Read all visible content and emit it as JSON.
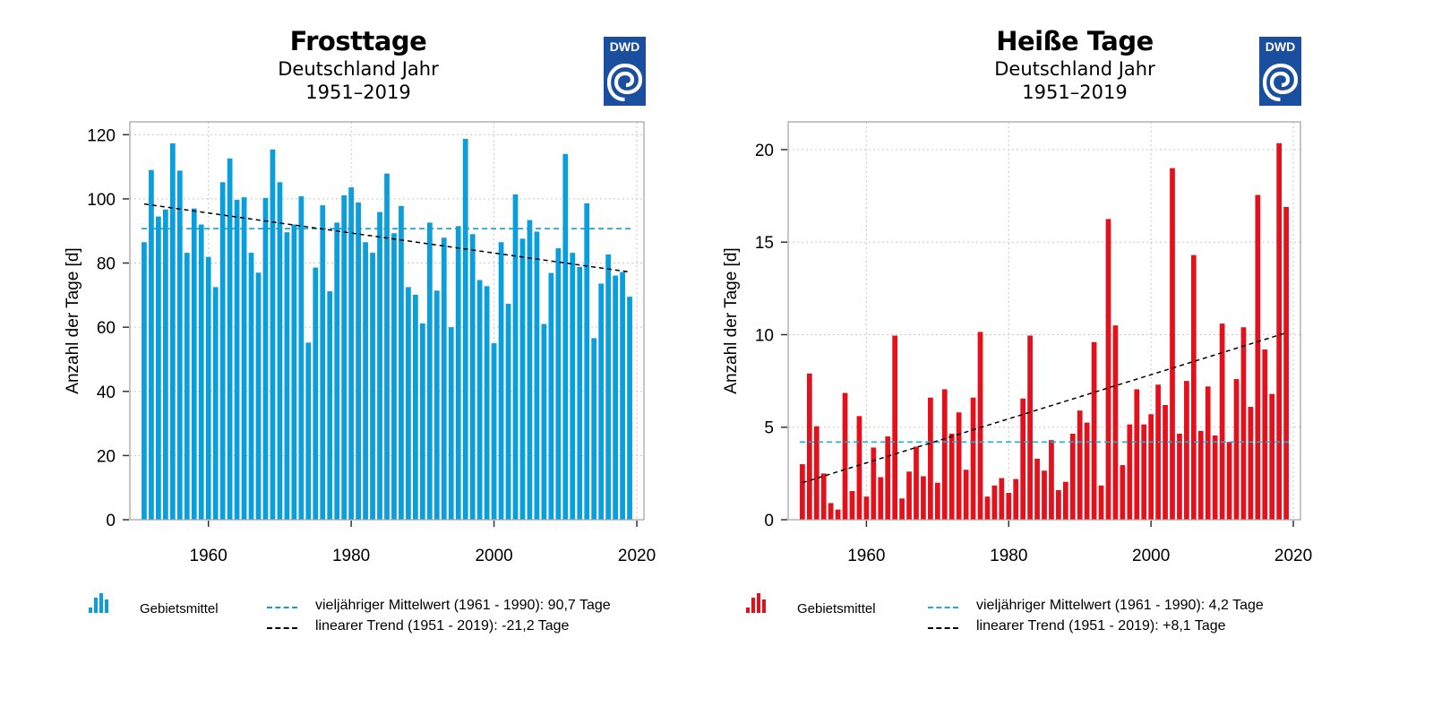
{
  "chart_data": [
    {
      "type": "bar",
      "title": "Frosttage",
      "subtitle": [
        "Deutschland Jahr",
        "1951–2019"
      ],
      "logo": "DWD",
      "xlabel": "",
      "ylabel": "Anzahl der Tage [d]",
      "xlim": [
        1949,
        2021
      ],
      "ylim": [
        0,
        124
      ],
      "xticks": [
        1960,
        1980,
        2000,
        2020
      ],
      "yticks": [
        0,
        20,
        40,
        60,
        80,
        100,
        120
      ],
      "grid": true,
      "bar_color": "#0a9fdc",
      "x": [
        1951,
        1952,
        1953,
        1954,
        1955,
        1956,
        1957,
        1958,
        1959,
        1960,
        1961,
        1962,
        1963,
        1964,
        1965,
        1966,
        1967,
        1968,
        1969,
        1970,
        1971,
        1972,
        1973,
        1974,
        1975,
        1976,
        1977,
        1978,
        1979,
        1980,
        1981,
        1982,
        1983,
        1984,
        1985,
        1986,
        1987,
        1988,
        1989,
        1990,
        1991,
        1992,
        1993,
        1994,
        1995,
        1996,
        1997,
        1998,
        1999,
        2000,
        2001,
        2002,
        2003,
        2004,
        2005,
        2006,
        2007,
        2008,
        2009,
        2010,
        2011,
        2012,
        2013,
        2014,
        2015,
        2016,
        2017,
        2018,
        2019
      ],
      "values": [
        86.5,
        109,
        94.5,
        96.7,
        117.3,
        108.8,
        83.2,
        97,
        92,
        81.9,
        72.5,
        105.2,
        112.6,
        99.7,
        100.5,
        83.2,
        77,
        100.3,
        115.4,
        105.2,
        89.6,
        92,
        100.8,
        55.2,
        78.6,
        98,
        71.2,
        92.6,
        101.1,
        103.6,
        98.9,
        86.5,
        83.2,
        95.9,
        107.9,
        89.3,
        97.8,
        72.5,
        70.1,
        61.2,
        92.6,
        71.4,
        87.9,
        60,
        91.5,
        118.7,
        89,
        74.7,
        72.8,
        55,
        86.5,
        67.3,
        101.4,
        87.6,
        93.4,
        89.8,
        61,
        76.9,
        84.6,
        114,
        83.2,
        78.8,
        98.6,
        56.6,
        73.6,
        82.7,
        76.1,
        77.2,
        69.5
      ],
      "mean_line": {
        "value": 90.7,
        "color": "#1a9bc4",
        "from": 1951,
        "to": 2019
      },
      "trend_line": {
        "start": [
          1951,
          98.4
        ],
        "end": [
          2019,
          77.2
        ],
        "color": "#000000"
      },
      "legend": {
        "series_label": "Gebietsmittel",
        "mean_label": "vieljähriger Mittelwert (1961 - 1990): 90,7 Tage",
        "trend_label": "linearer Trend (1951 - 2019): -21,2 Tage",
        "placement": "bottom"
      }
    },
    {
      "type": "bar",
      "title": "Heiße Tage",
      "subtitle": [
        "Deutschland Jahr",
        "1951–2019"
      ],
      "logo": "DWD",
      "xlabel": "",
      "ylabel": "Anzahl der Tage [d]",
      "xlim": [
        1949,
        2021
      ],
      "ylim": [
        0,
        21.5
      ],
      "xticks": [
        1960,
        1980,
        2000,
        2020
      ],
      "yticks": [
        0,
        5,
        10,
        15,
        20
      ],
      "grid": true,
      "bar_color": "#e3111c",
      "x": [
        1951,
        1952,
        1953,
        1954,
        1955,
        1956,
        1957,
        1958,
        1959,
        1960,
        1961,
        1962,
        1963,
        1964,
        1965,
        1966,
        1967,
        1968,
        1969,
        1970,
        1971,
        1972,
        1973,
        1974,
        1975,
        1976,
        1977,
        1978,
        1979,
        1980,
        1981,
        1982,
        1983,
        1984,
        1985,
        1986,
        1987,
        1988,
        1989,
        1990,
        1991,
        1992,
        1993,
        1994,
        1995,
        1996,
        1997,
        1998,
        1999,
        2000,
        2001,
        2002,
        2003,
        2004,
        2005,
        2006,
        2007,
        2008,
        2009,
        2010,
        2011,
        2012,
        2013,
        2014,
        2015,
        2016,
        2017,
        2018,
        2019
      ],
      "values": [
        3.0,
        7.9,
        5.05,
        2.5,
        0.9,
        0.55,
        6.85,
        1.55,
        5.6,
        1.25,
        3.9,
        2.3,
        4.5,
        9.95,
        1.15,
        2.6,
        3.95,
        2.35,
        6.6,
        2.0,
        7.05,
        4.65,
        5.8,
        2.7,
        6.6,
        10.15,
        1.25,
        1.85,
        2.25,
        1.45,
        2.2,
        6.55,
        9.95,
        3.3,
        2.65,
        4.3,
        1.6,
        2.05,
        4.65,
        5.9,
        5.25,
        9.6,
        1.85,
        16.25,
        10.5,
        2.95,
        5.15,
        7.05,
        5.15,
        5.7,
        7.3,
        6.2,
        19.0,
        4.65,
        7.5,
        14.3,
        4.8,
        7.2,
        4.55,
        10.6,
        4.2,
        7.6,
        10.4,
        6.1,
        17.55,
        9.2,
        6.8,
        20.35,
        16.9
      ],
      "mean_line": {
        "value": 4.2,
        "color": "#1ab0d6",
        "from": 1951,
        "to": 2019
      },
      "trend_line": {
        "start": [
          1951,
          2.0
        ],
        "end": [
          2019,
          10.1
        ],
        "color": "#000000"
      },
      "legend": {
        "series_label": "Gebietsmittel",
        "mean_label": "vieljähriger Mittelwert (1961 - 1990): 4,2 Tage",
        "trend_label": "linearer Trend (1951 - 2019): +8,1 Tage",
        "placement": "bottom"
      }
    }
  ]
}
